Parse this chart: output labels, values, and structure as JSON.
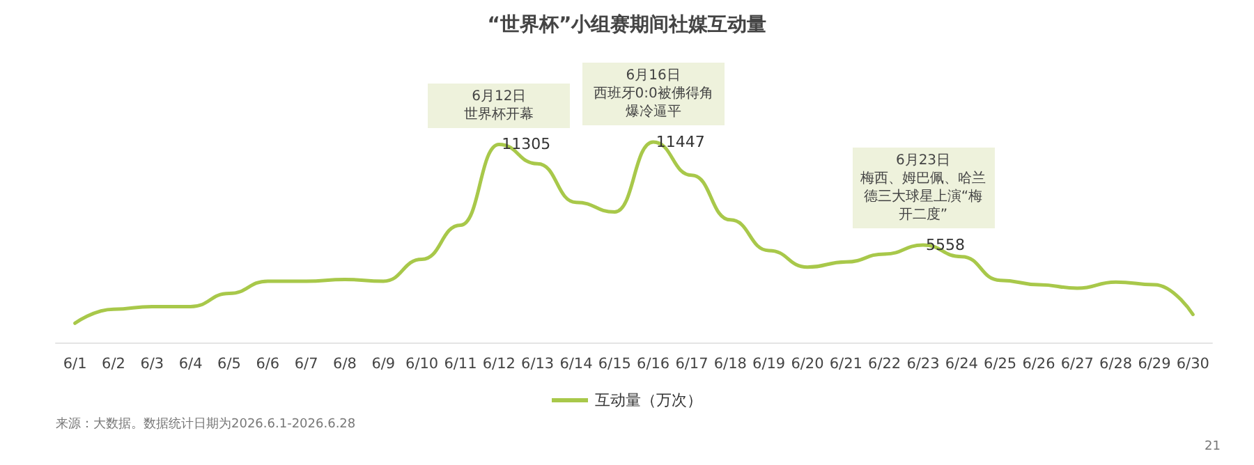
{
  "chart_data": {
    "type": "line",
    "title": "“世界杯”小组赛期间社媒互动量",
    "categories": [
      "6/1",
      "6/2",
      "6/3",
      "6/4",
      "6/5",
      "6/6",
      "6/7",
      "6/8",
      "6/9",
      "6/10",
      "6/11",
      "6/12",
      "6/13",
      "6/14",
      "6/15",
      "6/16",
      "6/17",
      "6/18",
      "6/19",
      "6/20",
      "6/21",
      "6/22",
      "6/23",
      "6/24",
      "6/25",
      "6/26",
      "6/27",
      "6/28",
      "6/29",
      "6/30"
    ],
    "series": [
      {
        "name": "互动量（万次）",
        "color": "#a8c84a",
        "values": [
          1100,
          1900,
          2050,
          2050,
          2800,
          3500,
          3500,
          3600,
          3500,
          4750,
          6700,
          11305,
          10200,
          8000,
          7450,
          11447,
          9550,
          7000,
          5250,
          4300,
          4600,
          5050,
          5558,
          4900,
          3550,
          3300,
          3100,
          3450,
          3300,
          1600
        ],
        "value_labels": [
          null,
          null,
          null,
          null,
          null,
          null,
          null,
          null,
          null,
          null,
          null,
          "11305",
          null,
          null,
          null,
          "11447",
          null,
          null,
          null,
          null,
          null,
          null,
          "5558",
          null,
          null,
          null,
          null,
          null,
          null,
          null
        ]
      }
    ],
    "annotations": [
      "6月12日",
      {
        "text": "世界杯开幕",
        "x": "6/12",
        "y": 11305
      },
      "6月16日",
      {
        "text": "西班牙0:0被佛得角爆冷逼平",
        "x": "6/16",
        "y": 11447
      },
      "6月23日",
      {
        "text": "梅西、姆巴佩、哈兰德三大球星上演“梅开二度”",
        "x": "6/23",
        "y": 5558
      },
      "来源：大数据。数据统计日期为2026.6.1-2026.6.28",
      "21"
    ],
    "legend": "bottom",
    "marker": "none",
    "line_style": "solid"
  }
}
